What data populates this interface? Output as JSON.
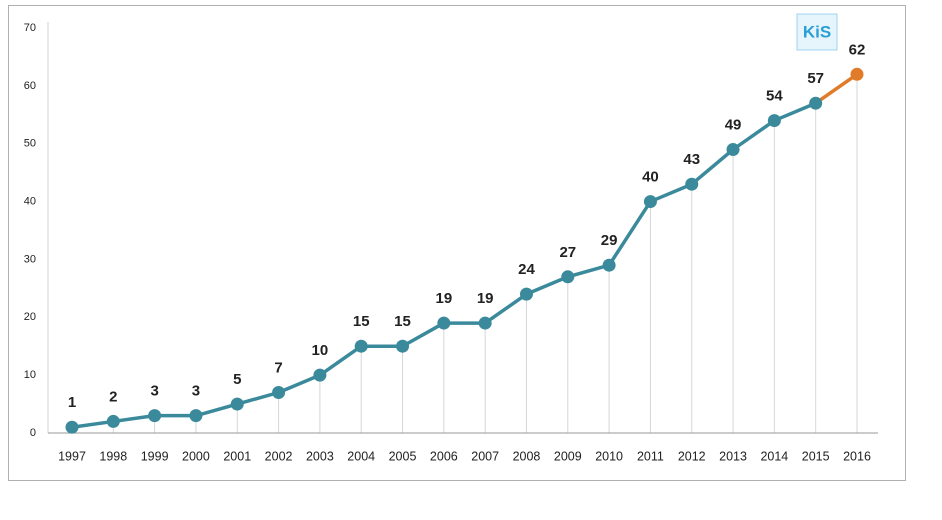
{
  "chart_data": {
    "type": "line",
    "categories": [
      "1997",
      "1998",
      "1999",
      "2000",
      "2001",
      "2002",
      "2003",
      "2004",
      "2005",
      "2006",
      "2007",
      "2008",
      "2009",
      "2010",
      "2011",
      "2012",
      "2013",
      "2014",
      "2015",
      "2016"
    ],
    "series": [
      {
        "color": "#3a8a9c",
        "values": [
          1,
          2,
          3,
          3,
          5,
          7,
          10,
          15,
          15,
          19,
          19,
          24,
          27,
          29,
          40,
          43,
          49,
          54,
          57,
          62
        ]
      }
    ],
    "last_color": "#e07b2a",
    "ylim": [
      0,
      70
    ],
    "yticks": [
      0,
      10,
      20,
      30,
      40,
      50,
      60,
      70
    ],
    "drop_lines": true,
    "logo": "KiS"
  }
}
